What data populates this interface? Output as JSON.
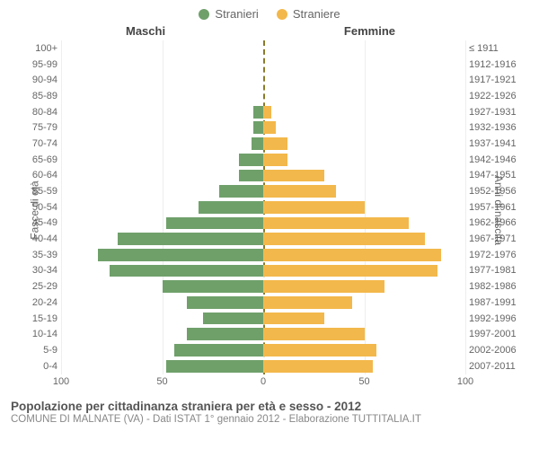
{
  "legend": {
    "male": {
      "label": "Stranieri",
      "color": "#6fa06a"
    },
    "female": {
      "label": "Straniere",
      "color": "#f3b84b"
    }
  },
  "headers": {
    "male": "Maschi",
    "female": "Femmine"
  },
  "axis_titles": {
    "left": "Fasce di età",
    "right": "Anni di nascita"
  },
  "chart": {
    "type": "population-pyramid",
    "x_max": 100,
    "x_ticks_left": [
      100,
      50,
      0
    ],
    "x_ticks_right": [
      0,
      50,
      100
    ],
    "grid_color": "#eeeeee",
    "center_line_color": "#8a7a2a",
    "background": "#ffffff",
    "bar_colors": {
      "male": "#6fa06a",
      "female": "#f3b84b"
    },
    "rows": [
      {
        "age": "100+",
        "birth": "≤ 1911",
        "m": 0,
        "f": 0
      },
      {
        "age": "95-99",
        "birth": "1912-1916",
        "m": 0,
        "f": 0
      },
      {
        "age": "90-94",
        "birth": "1917-1921",
        "m": 0,
        "f": 0
      },
      {
        "age": "85-89",
        "birth": "1922-1926",
        "m": 0,
        "f": 0
      },
      {
        "age": "80-84",
        "birth": "1927-1931",
        "m": 5,
        "f": 4
      },
      {
        "age": "75-79",
        "birth": "1932-1936",
        "m": 5,
        "f": 6
      },
      {
        "age": "70-74",
        "birth": "1937-1941",
        "m": 6,
        "f": 12
      },
      {
        "age": "65-69",
        "birth": "1942-1946",
        "m": 12,
        "f": 12
      },
      {
        "age": "60-64",
        "birth": "1947-1951",
        "m": 12,
        "f": 30
      },
      {
        "age": "55-59",
        "birth": "1952-1956",
        "m": 22,
        "f": 36
      },
      {
        "age": "50-54",
        "birth": "1957-1961",
        "m": 32,
        "f": 50
      },
      {
        "age": "45-49",
        "birth": "1962-1966",
        "m": 48,
        "f": 72
      },
      {
        "age": "40-44",
        "birth": "1967-1971",
        "m": 72,
        "f": 80
      },
      {
        "age": "35-39",
        "birth": "1972-1976",
        "m": 82,
        "f": 88
      },
      {
        "age": "30-34",
        "birth": "1977-1981",
        "m": 76,
        "f": 86
      },
      {
        "age": "25-29",
        "birth": "1982-1986",
        "m": 50,
        "f": 60
      },
      {
        "age": "20-24",
        "birth": "1987-1991",
        "m": 38,
        "f": 44
      },
      {
        "age": "15-19",
        "birth": "1992-1996",
        "m": 30,
        "f": 30
      },
      {
        "age": "10-14",
        "birth": "1997-2001",
        "m": 38,
        "f": 50
      },
      {
        "age": "5-9",
        "birth": "2002-2006",
        "m": 44,
        "f": 56
      },
      {
        "age": "0-4",
        "birth": "2007-2011",
        "m": 48,
        "f": 54
      }
    ]
  },
  "footer": {
    "title": "Popolazione per cittadinanza straniera per età e sesso - 2012",
    "subtitle": "COMUNE DI MALNATE (VA) - Dati ISTAT 1° gennaio 2012 - Elaborazione TUTTITALIA.IT"
  }
}
